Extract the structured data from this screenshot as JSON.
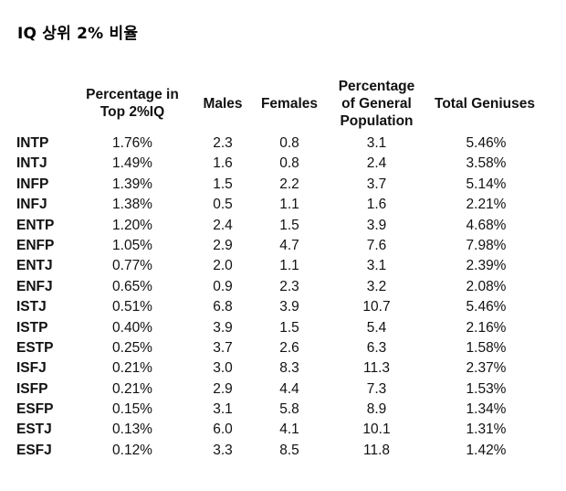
{
  "title": "IQ 상위 2% 비율",
  "headers": {
    "pct_top2": "Percentage in\nTop 2%IQ",
    "males": "Males",
    "females": "Females",
    "pop": "Percentage\nof General\nPopulation",
    "total": "Total Geniuses"
  },
  "rows": [
    {
      "type": "INTP",
      "pct": "1.76%",
      "males": "2.3",
      "females": "0.8",
      "pop": "3.1",
      "total": "5.46%"
    },
    {
      "type": "INTJ",
      "pct": "1.49%",
      "males": "1.6",
      "females": "0.8",
      "pop": "2.4",
      "total": "3.58%"
    },
    {
      "type": "INFP",
      "pct": "1.39%",
      "males": "1.5",
      "females": "2.2",
      "pop": "3.7",
      "total": "5.14%"
    },
    {
      "type": "INFJ",
      "pct": "1.38%",
      "males": "0.5",
      "females": "1.1",
      "pop": "1.6",
      "total": "2.21%"
    },
    {
      "type": "ENTP",
      "pct": "1.20%",
      "males": "2.4",
      "females": "1.5",
      "pop": "3.9",
      "total": "4.68%"
    },
    {
      "type": "ENFP",
      "pct": "1.05%",
      "males": "2.9",
      "females": "4.7",
      "pop": "7.6",
      "total": "7.98%"
    },
    {
      "type": "ENTJ",
      "pct": "0.77%",
      "males": "2.0",
      "females": "1.1",
      "pop": "3.1",
      "total": "2.39%"
    },
    {
      "type": "ENFJ",
      "pct": "0.65%",
      "males": "0.9",
      "females": "2.3",
      "pop": "3.2",
      "total": "2.08%"
    },
    {
      "type": "ISTJ",
      "pct": "0.51%",
      "males": "6.8",
      "females": "3.9",
      "pop": "10.7",
      "total": "5.46%"
    },
    {
      "type": "ISTP",
      "pct": "0.40%",
      "males": "3.9",
      "females": "1.5",
      "pop": "5.4",
      "total": "2.16%"
    },
    {
      "type": "ESTP",
      "pct": "0.25%",
      "males": "3.7",
      "females": "2.6",
      "pop": "6.3",
      "total": "1.58%"
    },
    {
      "type": "ISFJ",
      "pct": "0.21%",
      "males": "3.0",
      "females": "8.3",
      "pop": "11.3",
      "total": "2.37%"
    },
    {
      "type": "ISFP",
      "pct": "0.21%",
      "males": "2.9",
      "females": "4.4",
      "pop": "7.3",
      "total": "1.53%"
    },
    {
      "type": "ESFP",
      "pct": "0.15%",
      "males": "3.1",
      "females": "5.8",
      "pop": "8.9",
      "total": "1.34%"
    },
    {
      "type": "ESTJ",
      "pct": "0.13%",
      "males": "6.0",
      "females": "4.1",
      "pop": "10.1",
      "total": "1.31%"
    },
    {
      "type": "ESFJ",
      "pct": "0.12%",
      "males": "3.3",
      "females": "8.5",
      "pop": "11.8",
      "total": "1.42%"
    }
  ]
}
